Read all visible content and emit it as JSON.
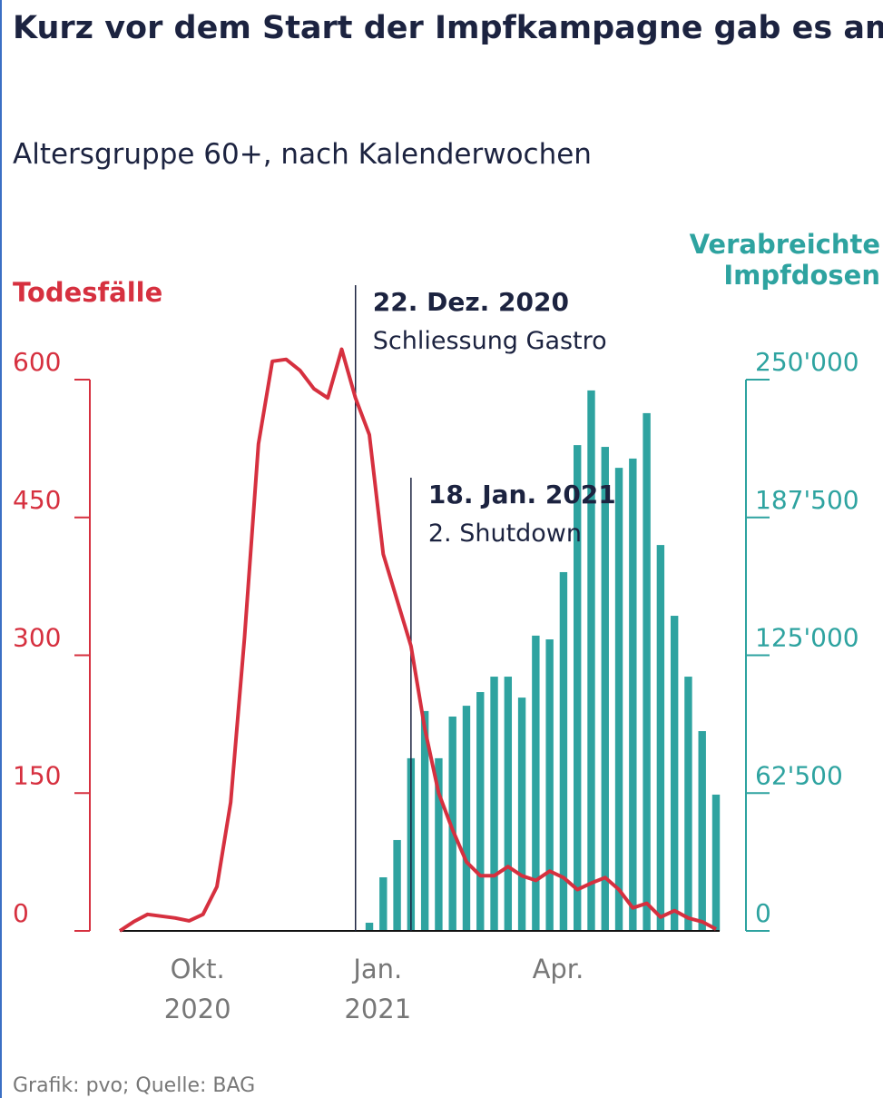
{
  "chart_data": {
    "type": "bar_line",
    "title": "Kurz vor dem Start der Impfkampagne gab es am meisten Covid-Tote",
    "subtitle": "Altersgruppe 60+, nach Kalenderwochen",
    "y_label": "Todesfälle",
    "y2_label": "Verabreichte Impfdosen",
    "source": "Grafik: pvo; Quelle: BAG",
    "categories": [
      null,
      null,
      null,
      null,
      null,
      null,
      "Okt. 2020",
      null,
      null,
      null,
      null,
      null,
      null,
      null,
      null,
      null,
      null,
      null,
      null,
      "Jan. 2021",
      null,
      null,
      null,
      null,
      null,
      null,
      null,
      null,
      null,
      null,
      null,
      null,
      "Apr.",
      null,
      null,
      null,
      null,
      null,
      null,
      null,
      null,
      null,
      null,
      null
    ],
    "series": [
      {
        "name": "Todesfälle",
        "type": "line",
        "color": "#d6303f",
        "values": [
          0,
          10,
          18,
          16,
          14,
          11,
          18,
          48,
          140,
          320,
          530,
          620,
          622,
          610,
          590,
          580,
          633,
          580,
          540,
          410,
          360,
          310,
          220,
          150,
          110,
          75,
          60,
          60,
          70,
          60,
          55,
          65,
          58,
          45,
          52,
          58,
          45,
          25,
          30,
          15,
          22,
          14,
          10,
          2
        ]
      },
      {
        "name": "Verabreichte Impfdosen",
        "type": "bar",
        "axis": "y2",
        "color": "#2ea3a0",
        "values": [
          null,
          null,
          null,
          null,
          null,
          null,
          null,
          null,
          null,
          null,
          null,
          null,
          null,
          null,
          null,
          null,
          null,
          null,
          3700,
          24300,
          41200,
          78300,
          99700,
          78300,
          97200,
          102100,
          108300,
          115300,
          115300,
          105800,
          133900,
          132200,
          162700,
          220300,
          245100,
          219500,
          210000,
          214200,
          234800,
          175000,
          142900,
          115300,
          90600,
          61800
        ]
      }
    ],
    "ylim": [
      0,
      600
    ],
    "yticks": [
      0,
      150,
      300,
      450,
      600
    ],
    "y2lim": [
      0,
      250000
    ],
    "y2ticks": [
      0,
      {
        "value": 62500,
        "label": "62'500"
      },
      {
        "value": 125000,
        "label": "125'000"
      },
      {
        "value": 187500,
        "label": "187'500"
      },
      {
        "value": 250000,
        "label": "250'000"
      }
    ],
    "annotations": [
      {
        "label": "22. Dez. 2020",
        "text": "Schliessung Gastro"
      },
      {
        "label": "18. Jan. 2021",
        "text": "2. Shutdown"
      }
    ]
  }
}
